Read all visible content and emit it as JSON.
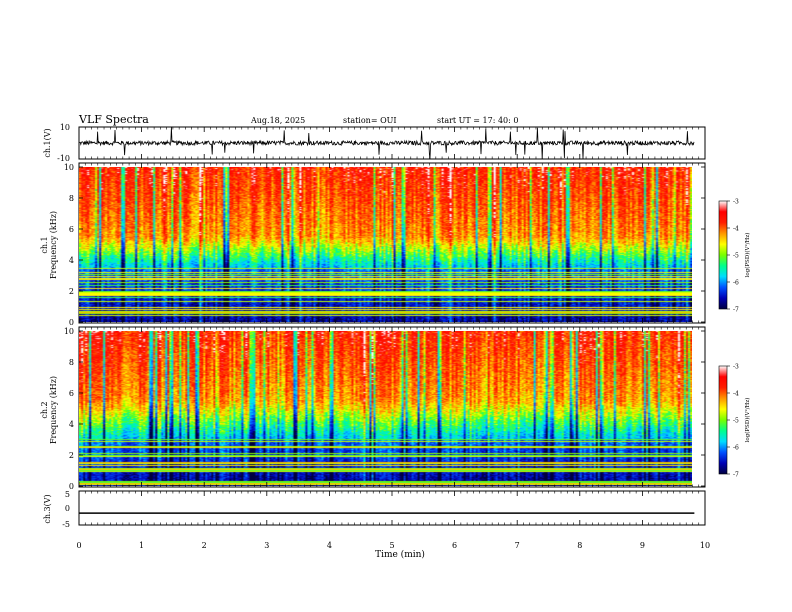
{
  "header": {
    "title": "VLF Spectra",
    "date": "Aug.18, 2025",
    "station": "station= OUI",
    "start": "start  UT  =   17: 40: 0"
  },
  "colorbar": {
    "label": "log(PSD)(V²/Hz)",
    "ticks": [
      "-3",
      "-4",
      "-5",
      "-6",
      "-7"
    ],
    "stops": [
      "#ffffff",
      "#ff0000",
      "#ff8000",
      "#ffff00",
      "#80ff00",
      "#00ff80",
      "#00e0ff",
      "#0060ff",
      "#0000c0",
      "#000040"
    ]
  },
  "colors": {
    "waveform": "#000000",
    "high_band": "#ff4a10",
    "mid_band": "#ffd000",
    "transition": "#40e060",
    "low_band": "#0030c0",
    "deep_low": "#000870"
  },
  "chart_data": [
    {
      "type": "line",
      "title": "ch.1 waveform",
      "ylabel": "ch.1(V)",
      "ylim": [
        -10,
        10
      ],
      "yticks": [
        "10",
        "-10"
      ],
      "x_unit": "min",
      "xlim": [
        0,
        10
      ],
      "baseline": 0,
      "description_values": {
        "typical_amplitude": 2,
        "spike_amplitude": 10
      }
    },
    {
      "type": "heatmap",
      "title": "ch.1 spectrogram",
      "ylabel_line1": "ch.1",
      "ylabel_line2": "Frequency  (kHz)",
      "ylim": [
        0,
        10
      ],
      "yticks": [
        "0",
        "2",
        "4",
        "6",
        "8",
        "10"
      ],
      "xlim": [
        0,
        9.83
      ],
      "zlim": [
        -7,
        -3
      ],
      "bands_khz": {
        "high_psd_above": 5.5,
        "transition": [
          3.5,
          5.5
        ],
        "low_psd_below": 3.5
      }
    },
    {
      "type": "heatmap",
      "title": "ch.2 spectrogram",
      "ylabel_line1": "ch.2",
      "ylabel_line2": "Frequency  (kHz)",
      "ylim": [
        0,
        10
      ],
      "yticks": [
        "0",
        "2",
        "4",
        "6",
        "8",
        "10"
      ],
      "xlim": [
        0,
        9.83
      ],
      "zlim": [
        -7,
        -3
      ],
      "bands_khz": {
        "high_psd_above": 5.5,
        "transition": [
          3.0,
          5.5
        ],
        "low_psd_below": 3.0
      }
    },
    {
      "type": "line",
      "title": "ch.3 waveform",
      "ylabel": "ch.3(V)",
      "ylim": [
        -5,
        5
      ],
      "yticks": [
        "5",
        "0",
        "-5"
      ],
      "constant_value": -1.5
    }
  ],
  "xaxis": {
    "label": "Time  (min)",
    "ticks": [
      "0",
      "1",
      "2",
      "3",
      "4",
      "5",
      "6",
      "7",
      "8",
      "9",
      "10"
    ],
    "range": [
      0,
      10
    ]
  }
}
